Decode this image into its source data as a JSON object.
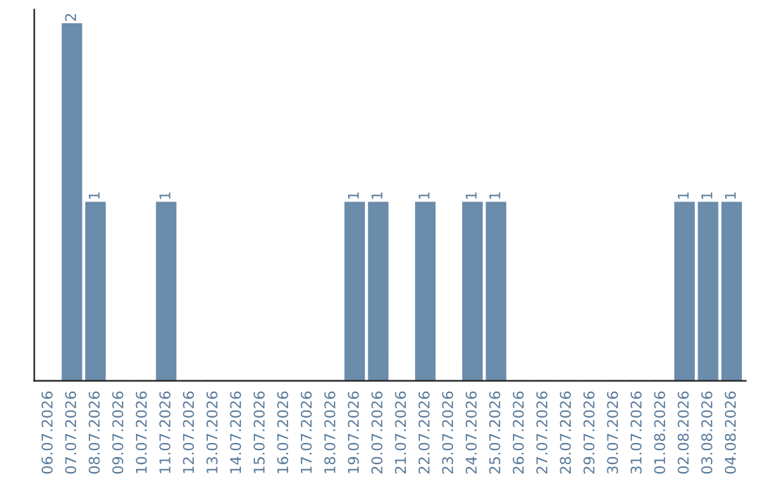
{
  "chart_data": {
    "type": "bar",
    "categories": [
      "06.07.2026",
      "07.07.2026",
      "08.07.2026",
      "09.07.2026",
      "10.07.2026",
      "11.07.2026",
      "12.07.2026",
      "13.07.2026",
      "14.07.2026",
      "15.07.2026",
      "16.07.2026",
      "17.07.2026",
      "18.07.2026",
      "19.07.2026",
      "20.07.2026",
      "21.07.2026",
      "22.07.2026",
      "23.07.2026",
      "24.07.2026",
      "25.07.2026",
      "26.07.2026",
      "27.07.2026",
      "28.07.2026",
      "29.07.2026",
      "30.07.2026",
      "31.07.2026",
      "01.08.2026",
      "02.08.2026",
      "03.08.2026",
      "04.08.2026"
    ],
    "values": [
      0,
      2,
      1,
      0,
      0,
      1,
      0,
      0,
      0,
      0,
      0,
      0,
      0,
      1,
      1,
      0,
      1,
      0,
      1,
      1,
      0,
      0,
      0,
      0,
      0,
      0,
      0,
      1,
      1,
      1
    ],
    "value_labels": [
      null,
      "2",
      "1",
      null,
      null,
      "1",
      null,
      null,
      null,
      null,
      null,
      null,
      null,
      "1",
      "1",
      null,
      "1",
      null,
      "1",
      "1",
      null,
      null,
      null,
      null,
      null,
      null,
      null,
      "1",
      "1",
      "1"
    ],
    "color": "#6b8cab",
    "tick_labels": "x",
    "grid": false
  }
}
